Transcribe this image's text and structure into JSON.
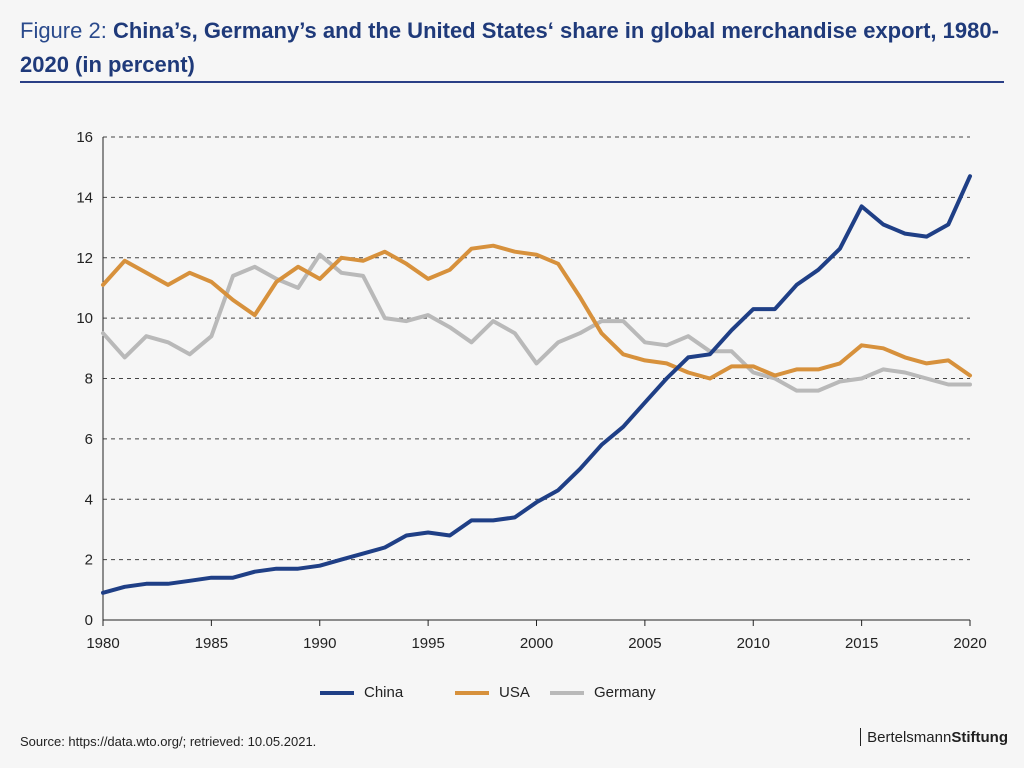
{
  "header": {
    "prefix": "Figure 2:",
    "title": "China’s, Germany’s and the United States‘ share in global merchandise export, 1980-2020 (in percent)"
  },
  "colors": {
    "title": "#1f3a7a",
    "rule": "#2a3f86",
    "china": "#1f3f86",
    "usa": "#d7913c",
    "germany": "#b9b9b9",
    "grid": "#444444"
  },
  "chart_data": {
    "type": "line",
    "title": "",
    "xlabel": "",
    "ylabel": "",
    "xlim": [
      1980,
      2020
    ],
    "ylim": [
      0,
      16
    ],
    "x_ticks": [
      1980,
      1985,
      1990,
      1995,
      2000,
      2005,
      2010,
      2015,
      2020
    ],
    "y_ticks": [
      0,
      2,
      4,
      6,
      8,
      10,
      12,
      14,
      16
    ],
    "grid": "horizontal dashed",
    "legend_position": "bottom-center",
    "x": [
      1980,
      1981,
      1982,
      1983,
      1984,
      1985,
      1986,
      1987,
      1988,
      1989,
      1990,
      1991,
      1992,
      1993,
      1994,
      1995,
      1996,
      1997,
      1998,
      1999,
      2000,
      2001,
      2002,
      2003,
      2004,
      2005,
      2006,
      2007,
      2008,
      2009,
      2010,
      2011,
      2012,
      2013,
      2014,
      2015,
      2016,
      2017,
      2018,
      2019,
      2020
    ],
    "series": [
      {
        "name": "China",
        "color": "#1f3f86",
        "values": [
          0.9,
          1.1,
          1.2,
          1.2,
          1.3,
          1.4,
          1.4,
          1.6,
          1.7,
          1.7,
          1.8,
          2.0,
          2.2,
          2.4,
          2.8,
          2.9,
          2.8,
          3.3,
          3.3,
          3.4,
          3.9,
          4.3,
          5.0,
          5.8,
          6.4,
          7.2,
          8.0,
          8.7,
          8.8,
          9.6,
          10.3,
          10.3,
          11.1,
          11.6,
          12.3,
          13.7,
          13.1,
          12.8,
          12.7,
          13.1,
          14.7
        ]
      },
      {
        "name": "USA",
        "color": "#d7913c",
        "values": [
          11.1,
          11.9,
          11.5,
          11.1,
          11.5,
          11.2,
          10.6,
          10.1,
          11.2,
          11.7,
          11.3,
          12.0,
          11.9,
          12.2,
          11.8,
          11.3,
          11.6,
          12.3,
          12.4,
          12.2,
          12.1,
          11.8,
          10.7,
          9.5,
          8.8,
          8.6,
          8.5,
          8.2,
          8.0,
          8.4,
          8.4,
          8.1,
          8.3,
          8.3,
          8.5,
          9.1,
          9.0,
          8.7,
          8.5,
          8.6,
          8.1
        ]
      },
      {
        "name": "Germany",
        "color": "#b9b9b9",
        "values": [
          9.5,
          8.7,
          9.4,
          9.2,
          8.8,
          9.4,
          11.4,
          11.7,
          11.3,
          11.0,
          12.1,
          11.5,
          11.4,
          10.0,
          9.9,
          10.1,
          9.7,
          9.2,
          9.9,
          9.5,
          8.5,
          9.2,
          9.5,
          9.9,
          9.9,
          9.2,
          9.1,
          9.4,
          8.9,
          8.9,
          8.2,
          8.0,
          7.6,
          7.6,
          7.9,
          8.0,
          8.3,
          8.2,
          8.0,
          7.8,
          7.8
        ]
      }
    ]
  },
  "footer": {
    "source": "Source: https://data.wto.org/; retrieved: 10.05.2021.",
    "logo_regular": "Bertelsmann",
    "logo_bold": "Stiftung"
  }
}
